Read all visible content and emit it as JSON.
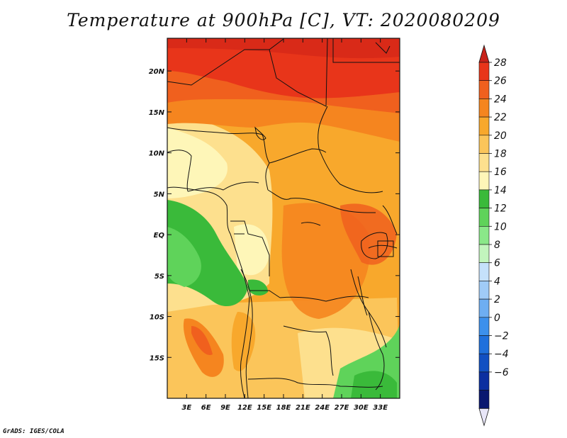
{
  "title": "Temperature at 900hPa [C], VT: 2020080209",
  "credit": "GrADS: IGES/COLA",
  "map": {
    "lon_range": [
      0,
      36
    ],
    "lat_range": [
      -20,
      24
    ],
    "lon_ticks": [
      {
        "lon": 3,
        "label": "3E"
      },
      {
        "lon": 6,
        "label": "6E"
      },
      {
        "lon": 9,
        "label": "9E"
      },
      {
        "lon": 12,
        "label": "12E"
      },
      {
        "lon": 15,
        "label": "15E"
      },
      {
        "lon": 18,
        "label": "18E"
      },
      {
        "lon": 21,
        "label": "21E"
      },
      {
        "lon": 24,
        "label": "24E"
      },
      {
        "lon": 27,
        "label": "27E"
      },
      {
        "lon": 30,
        "label": "30E"
      },
      {
        "lon": 33,
        "label": "33E"
      }
    ],
    "lat_ticks": [
      {
        "lat": 20,
        "label": "20N"
      },
      {
        "lat": 15,
        "label": "15N"
      },
      {
        "lat": 10,
        "label": "10N"
      },
      {
        "lat": 5,
        "label": "5N"
      },
      {
        "lat": 0,
        "label": "EQ"
      },
      {
        "lat": -5,
        "label": "5S"
      },
      {
        "lat": -10,
        "label": "10S"
      },
      {
        "lat": -15,
        "label": "15S"
      }
    ]
  },
  "colorbar": {
    "labels": [
      "28",
      "26",
      "24",
      "22",
      "20",
      "18",
      "16",
      "14",
      "12",
      "10",
      "8",
      "6",
      "4",
      "2",
      "0",
      "−2",
      "−4",
      "−6"
    ],
    "colors": [
      "#e8351a",
      "#f0601e",
      "#f5851f",
      "#f8a82c",
      "#fbc55a",
      "#fde08e",
      "#fef6b8",
      "#3aba3a",
      "#5fd35a",
      "#8ae889",
      "#c2f5bd",
      "#c5e1fb",
      "#a0cbf7",
      "#6eaef2",
      "#3c90ec",
      "#1f70dc",
      "#1150c2",
      "#0b2fa0",
      "#0a1870"
    ],
    "lower_triangle_color": "#e8e6f8",
    "upper_triangle_color": "#c8221a"
  }
}
